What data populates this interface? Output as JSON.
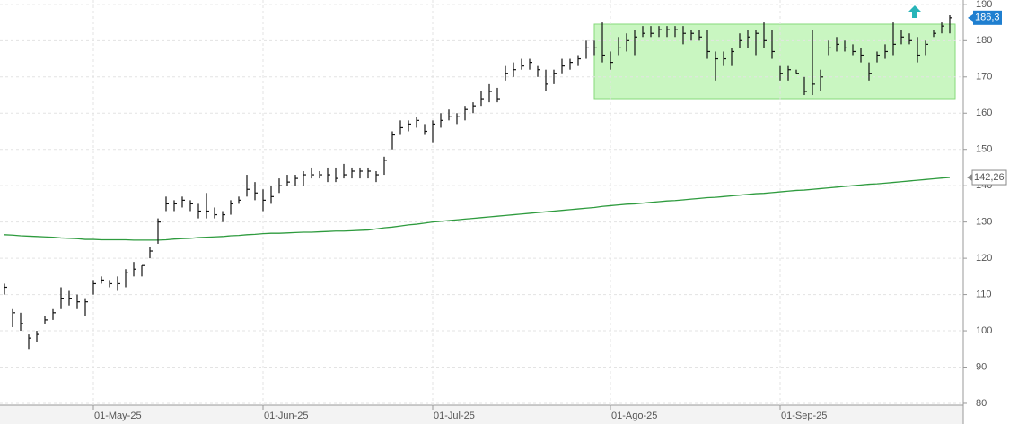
{
  "chart_data": {
    "type": "ohlc",
    "color": "#111111",
    "categories": [
      null,
      null,
      null,
      null,
      null,
      null,
      null,
      null,
      null,
      null,
      null,
      "01-May-25",
      null,
      null,
      null,
      null,
      null,
      null,
      null,
      null,
      null,
      null,
      null,
      null,
      null,
      null,
      null,
      null,
      null,
      null,
      null,
      null,
      "01-Jun-25",
      null,
      null,
      null,
      null,
      null,
      null,
      null,
      null,
      null,
      null,
      null,
      null,
      null,
      null,
      null,
      null,
      null,
      null,
      null,
      null,
      "01-Jul-25",
      null,
      null,
      null,
      null,
      null,
      null,
      null,
      null,
      null,
      null,
      null,
      null,
      null,
      null,
      null,
      null,
      null,
      null,
      null,
      null,
      null,
      "01-Ago-25",
      null,
      null,
      null,
      null,
      null,
      null,
      null,
      null,
      null,
      null,
      null,
      null,
      null,
      null,
      null,
      null,
      null,
      null,
      null,
      null,
      "01-Sep-25",
      null,
      null,
      null,
      null,
      null,
      null,
      null,
      null,
      null,
      null,
      null,
      null,
      null,
      null,
      null,
      null,
      null,
      null,
      null,
      null,
      null
    ],
    "low": [
      110,
      101,
      100,
      95,
      97,
      102,
      103,
      106,
      107,
      106,
      104,
      110,
      113,
      112,
      111,
      112,
      115,
      115,
      120,
      124,
      133,
      133,
      134,
      133,
      131,
      131,
      131,
      130,
      132,
      135,
      137,
      136,
      133,
      135,
      138,
      140,
      140,
      140,
      142,
      142,
      141,
      141,
      142,
      142,
      142,
      142,
      141,
      143,
      150,
      154,
      155,
      156,
      154,
      152,
      156,
      158,
      157,
      158,
      160,
      162,
      163,
      163,
      169,
      170,
      172,
      172,
      170,
      166,
      168,
      171,
      172,
      173,
      175,
      176,
      174,
      172,
      176,
      177,
      176,
      181,
      181,
      181,
      181,
      181,
      179,
      180,
      180,
      175,
      169,
      173,
      173,
      178,
      178,
      176,
      178,
      175,
      169,
      169,
      171,
      165,
      165,
      166,
      176,
      177,
      177,
      176,
      174,
      169,
      174,
      175,
      176,
      179,
      179,
      174,
      176,
      181,
      182,
      182
    ],
    "high": [
      113,
      106,
      105,
      99,
      100,
      104,
      106,
      112,
      111,
      110,
      109,
      114,
      115,
      114,
      115,
      117,
      119,
      118,
      123,
      131,
      137,
      136,
      137,
      136,
      135,
      138,
      134,
      133,
      136,
      137,
      143,
      141,
      139,
      140,
      142,
      143,
      143,
      144,
      145,
      144,
      145,
      145,
      146,
      145,
      145,
      145,
      144,
      148,
      155,
      158,
      158,
      159,
      157,
      158,
      160,
      161,
      160,
      162,
      163,
      166,
      168,
      167,
      173,
      174,
      175,
      175,
      173,
      172,
      172,
      175,
      175,
      176,
      180,
      180,
      185,
      177,
      181,
      182,
      183,
      184,
      184,
      184,
      184,
      184,
      184,
      183,
      183,
      183,
      177,
      177,
      178,
      182,
      183,
      183,
      185,
      183,
      173,
      173,
      172,
      170,
      183,
      172,
      180,
      181,
      180,
      179,
      178,
      174,
      177,
      179,
      185,
      183,
      182,
      181,
      180,
      183,
      185,
      187
    ],
    "close": [
      112,
      105,
      102,
      98,
      99,
      103,
      105,
      109,
      109,
      108,
      108,
      113,
      114,
      113,
      113,
      116,
      117,
      118,
      122,
      130,
      135,
      135,
      136,
      135,
      133,
      133,
      132,
      132,
      135,
      136,
      139,
      138,
      136,
      137,
      140,
      141,
      142,
      143,
      143,
      143,
      143,
      142,
      143,
      144,
      144,
      144,
      143,
      147,
      154,
      156,
      157,
      158,
      155,
      157,
      158,
      159,
      159,
      161,
      162,
      164,
      166,
      164,
      171,
      172,
      173,
      174,
      172,
      168,
      171,
      173,
      174,
      175,
      178,
      178,
      176,
      174,
      178,
      180,
      181,
      182,
      182,
      183,
      183,
      183,
      182,
      182,
      181,
      177,
      175,
      175,
      177,
      180,
      181,
      182,
      180,
      177,
      171,
      172,
      171,
      166,
      168,
      170,
      178,
      179,
      178,
      177,
      176,
      171,
      176,
      177,
      179,
      181,
      180,
      176,
      179,
      182,
      184,
      186.3
    ],
    "moving_average": {
      "color": "#2e9b3e",
      "values": [
        126.5,
        126.4,
        126.2,
        126.1,
        126.0,
        125.9,
        125.8,
        125.6,
        125.5,
        125.4,
        125.2,
        125.2,
        125.1,
        125.1,
        125.1,
        125.1,
        125.0,
        125.0,
        125.0,
        125.0,
        125.1,
        125.3,
        125.4,
        125.5,
        125.7,
        125.8,
        125.9,
        126.0,
        126.2,
        126.3,
        126.5,
        126.6,
        126.8,
        126.9,
        126.9,
        127.0,
        127.1,
        127.2,
        127.2,
        127.3,
        127.4,
        127.5,
        127.5,
        127.6,
        127.7,
        127.8,
        128.1,
        128.4,
        128.6,
        128.9,
        129.2,
        129.4,
        129.7,
        130.0,
        130.2,
        130.4,
        130.6,
        130.8,
        131.0,
        131.2,
        131.4,
        131.6,
        131.8,
        132.0,
        132.2,
        132.4,
        132.6,
        132.8,
        133.0,
        133.2,
        133.4,
        133.6,
        133.8,
        134.0,
        134.3,
        134.5,
        134.7,
        134.9,
        135.0,
        135.2,
        135.4,
        135.6,
        135.8,
        135.9,
        136.1,
        136.3,
        136.5,
        136.7,
        136.8,
        137.0,
        137.2,
        137.4,
        137.6,
        137.8,
        137.9,
        138.1,
        138.3,
        138.5,
        138.7,
        138.8,
        139.0,
        139.2,
        139.4,
        139.6,
        139.8,
        140.0,
        140.2,
        140.4,
        140.5,
        140.7,
        140.9,
        141.1,
        141.3,
        141.5,
        141.7,
        141.9,
        142.1,
        142.26
      ]
    },
    "price_tag": {
      "value": 186.3,
      "label": "186,3",
      "color": "#1f7fd0"
    },
    "ma_tag": {
      "value": 142.26,
      "label": "142,26"
    },
    "ylim": [
      79.5,
      191.2
    ],
    "yticks": [
      80,
      90,
      100,
      110,
      120,
      130,
      140,
      150,
      160,
      170,
      180,
      190
    ],
    "grid": true
  }
}
